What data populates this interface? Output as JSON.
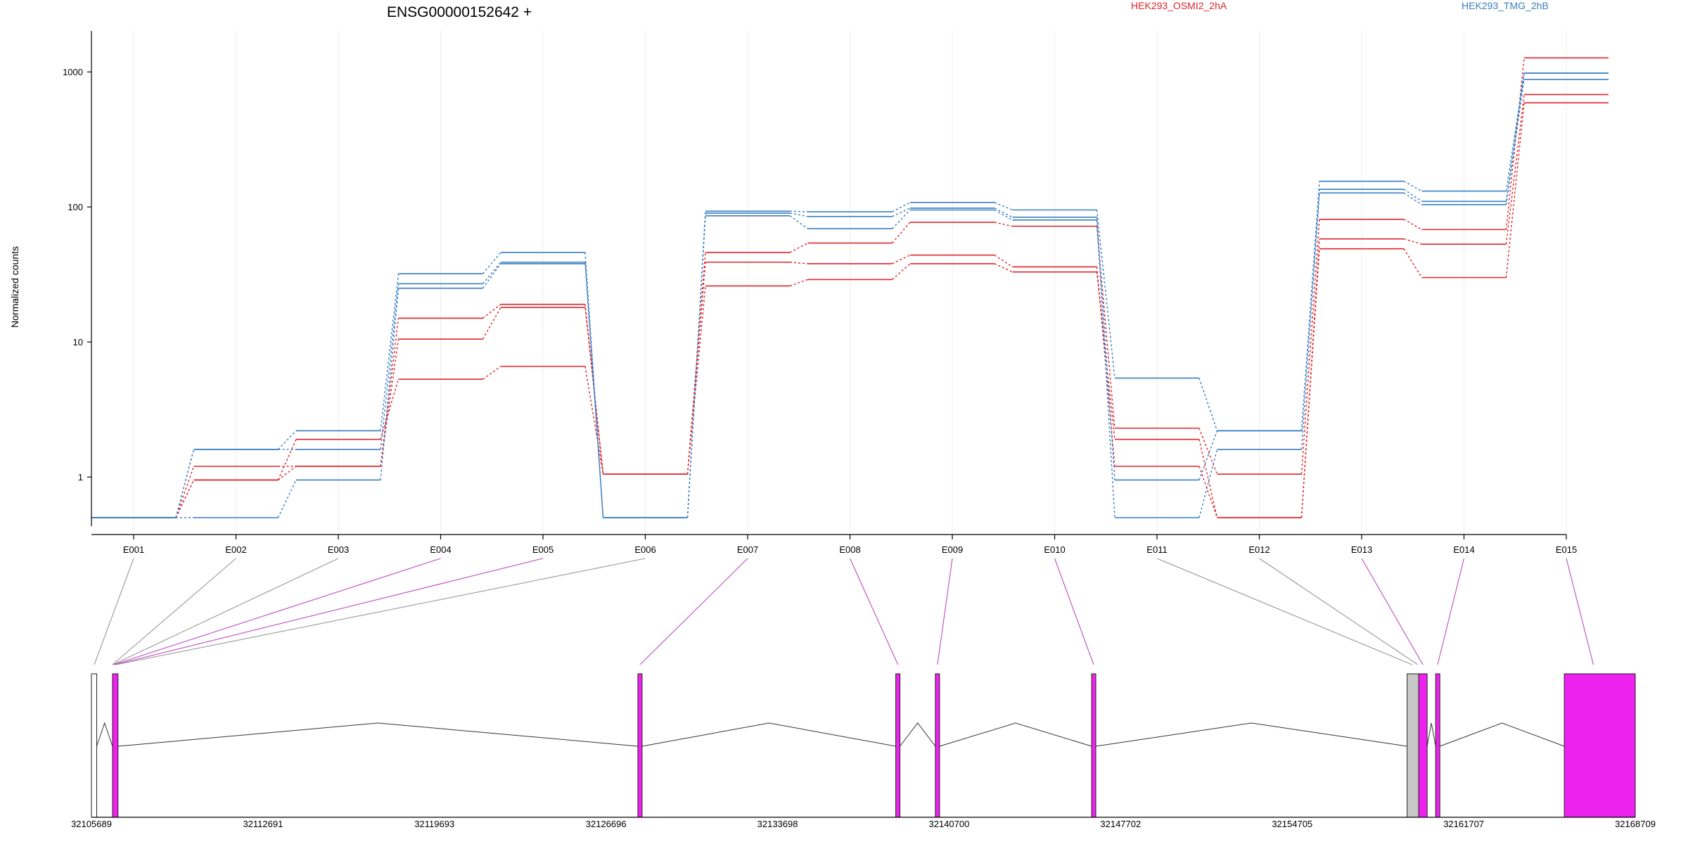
{
  "chart_data": {
    "type": "line",
    "title": "ENSG00000152642 +",
    "ylabel": "Normalized counts",
    "yscale": "log",
    "ylim": [
      0.5,
      1700
    ],
    "yticks": [
      1,
      10,
      100,
      1000
    ],
    "ytick_labels": [
      "1",
      "10",
      "100",
      "1000"
    ],
    "grid": "vertical",
    "legend_placement": "top",
    "categories": [
      "E001",
      "E002",
      "E003",
      "E004",
      "E005",
      "E006",
      "E007",
      "E008",
      "E009",
      "E010",
      "E011",
      "E012",
      "E013",
      "E014",
      "E015"
    ],
    "series": [
      {
        "group": "HEK293_OSMI2_2hA",
        "color": "#e0252b",
        "values": [
          0.5,
          1.2,
          1.2,
          15,
          19,
          1.05,
          46,
          54,
          77,
          72,
          2.3,
          1.05,
          81,
          68,
          1270
        ]
      },
      {
        "group": "HEK293_OSMI2_2hA",
        "color": "#e0252b",
        "values": [
          0.5,
          0.95,
          1.2,
          10.5,
          18,
          1.05,
          39,
          38,
          44,
          36,
          1.2,
          0.5,
          58,
          53,
          680
        ]
      },
      {
        "group": "HEK293_OSMI2_2hA",
        "color": "#e0252b",
        "values": [
          0.5,
          0.95,
          1.9,
          5.3,
          6.6,
          1.05,
          26,
          29,
          38,
          33,
          1.9,
          0.5,
          49,
          30,
          590
        ]
      },
      {
        "group": "HEK293_TMG_2hB",
        "color": "#3a7fc0",
        "values": [
          0.5,
          1.6,
          2.2,
          32,
          46,
          0.5,
          93,
          92,
          108,
          95,
          5.4,
          2.2,
          155,
          131,
          980
        ]
      },
      {
        "group": "HEK293_TMG_2hB",
        "color": "#3a7fc0",
        "values": [
          0.5,
          1.6,
          1.6,
          27,
          39,
          0.5,
          90,
          85,
          98,
          84,
          0.95,
          2.2,
          135,
          110,
          980
        ]
      },
      {
        "group": "HEK293_TMG_2hB",
        "color": "#3a7fc0",
        "values": [
          0.5,
          0.5,
          0.95,
          25,
          38,
          0.5,
          86,
          69,
          95,
          80,
          0.5,
          1.6,
          127,
          104,
          880
        ]
      }
    ],
    "legend": [
      {
        "label": "HEK293_OSMI2_2hA",
        "color": "#e0252b"
      },
      {
        "label": "HEK293_TMG_2hB",
        "color": "#3a7fc0"
      }
    ],
    "gene_model": {
      "coord_range": [
        32105689,
        32168709
      ],
      "coord_ticks": [
        32105689,
        32112691,
        32119693,
        32126696,
        32133698,
        32140700,
        32147702,
        32154705,
        32161707,
        32168709
      ],
      "coord_tick_labels": [
        "32105689",
        "32112691",
        "32119693",
        "32126696",
        "32133698",
        "32140700",
        "32147702",
        "32154705",
        "32161707",
        "32168709"
      ],
      "exons": [
        {
          "start": 32105689,
          "end": 32105905,
          "color": "#ffffff"
        },
        {
          "start": 32106549,
          "end": 32106775,
          "color": "#ee22ee"
        },
        {
          "start": 32127995,
          "end": 32128168,
          "color": "#ee22ee"
        },
        {
          "start": 32138522,
          "end": 32138694,
          "color": "#ee22ee"
        },
        {
          "start": 32140138,
          "end": 32140311,
          "color": "#ee22ee"
        },
        {
          "start": 32146517,
          "end": 32146689,
          "color": "#ee22ee"
        },
        {
          "start": 32159396,
          "end": 32159870,
          "color": "#c8c8c8"
        },
        {
          "start": 32159870,
          "end": 32160214,
          "color": "#ee22ee"
        },
        {
          "start": 32160560,
          "end": 32160732,
          "color": "#ee22ee"
        },
        {
          "start": 32165811,
          "end": 32168709,
          "color": "#ee22ee"
        }
      ],
      "mapping": [
        {
          "bin": "E001",
          "coord": 32105805,
          "color": "#999999"
        },
        {
          "bin": "E002",
          "coord": 32106549,
          "color": "#999999"
        },
        {
          "bin": "E003",
          "coord": 32106565,
          "color": "#999999"
        },
        {
          "bin": "E004",
          "coord": 32106600,
          "color": "#c04cc0"
        },
        {
          "bin": "E005",
          "coord": 32106650,
          "color": "#c04cc0"
        },
        {
          "bin": "E006",
          "coord": 32106700,
          "color": "#999999"
        },
        {
          "bin": "E007",
          "coord": 32128080,
          "color": "#c04cc0"
        },
        {
          "bin": "E008",
          "coord": 32138610,
          "color": "#c04cc0"
        },
        {
          "bin": "E009",
          "coord": 32140225,
          "color": "#c04cc0"
        },
        {
          "bin": "E010",
          "coord": 32146600,
          "color": "#c04cc0"
        },
        {
          "bin": "E011",
          "coord": 32159600,
          "color": "#999999"
        },
        {
          "bin": "E012",
          "coord": 32159830,
          "color": "#999999"
        },
        {
          "bin": "E013",
          "coord": 32160040,
          "color": "#c04cc0"
        },
        {
          "bin": "E014",
          "coord": 32160640,
          "color": "#c04cc0"
        },
        {
          "bin": "E015",
          "coord": 32167000,
          "color": "#c04cc0"
        }
      ]
    }
  }
}
